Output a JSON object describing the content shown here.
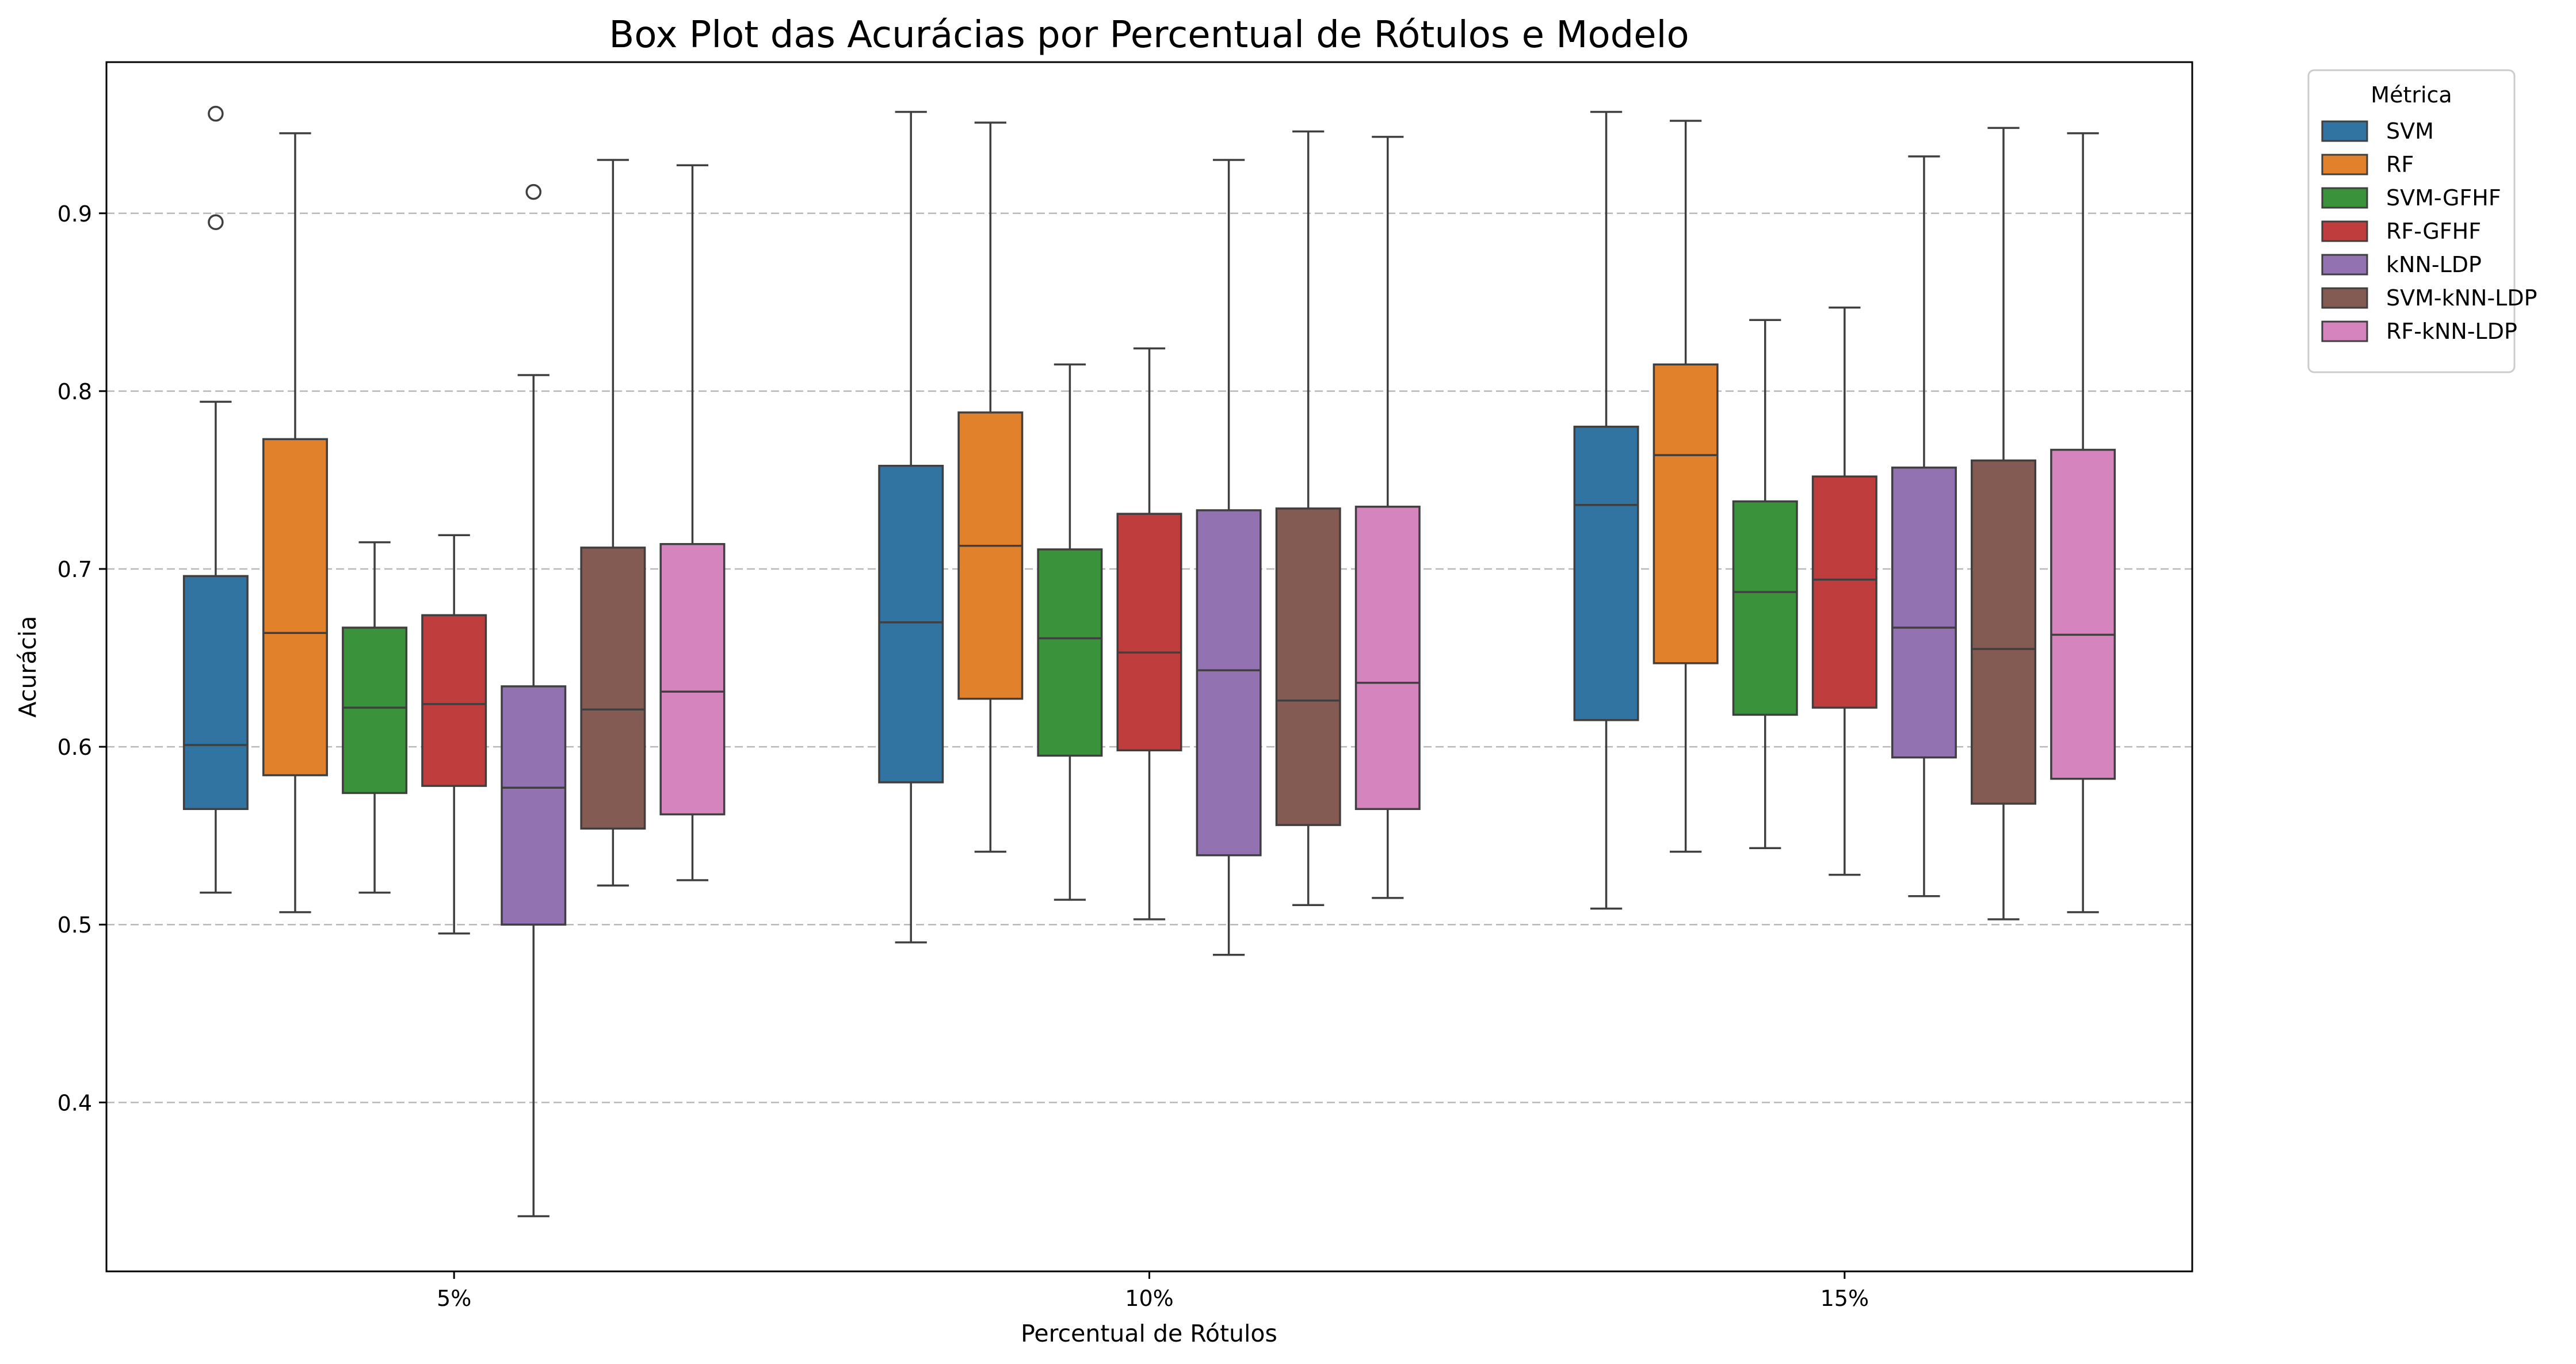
{
  "chart_data": {
    "type": "box",
    "title": "Box Plot das Acurácias por Percentual de Rótulos e Modelo",
    "xlabel": "Percentual de Rótulos",
    "ylabel": "Acurácia",
    "categories": [
      "5%",
      "10%",
      "15%"
    ],
    "ylim": [
      0.305,
      0.985
    ],
    "yticks": [
      0.4,
      0.5,
      0.6,
      0.7,
      0.8,
      0.9
    ],
    "ytick_labels": [
      "0.4",
      "0.5",
      "0.6",
      "0.7",
      "0.8",
      "0.9"
    ],
    "grid": "y, dashed",
    "legend": {
      "title": "Métrica",
      "placement": "outside top-right"
    },
    "series": [
      {
        "name": "SVM",
        "color": "#3274a1",
        "boxes": [
          {
            "whisker_low": 0.518,
            "q1": 0.565,
            "median": 0.601,
            "q3": 0.696,
            "whisker_high": 0.794,
            "outliers": [
              0.895,
              0.956
            ]
          },
          {
            "whisker_low": 0.49,
            "q1": 0.58,
            "median": 0.67,
            "q3": 0.758,
            "whisker_high": 0.957,
            "outliers": []
          },
          {
            "whisker_low": 0.509,
            "q1": 0.615,
            "median": 0.736,
            "q3": 0.78,
            "whisker_high": 0.957,
            "outliers": []
          }
        ]
      },
      {
        "name": "RF",
        "color": "#e1812c",
        "boxes": [
          {
            "whisker_low": 0.507,
            "q1": 0.584,
            "median": 0.664,
            "q3": 0.773,
            "whisker_high": 0.945,
            "outliers": []
          },
          {
            "whisker_low": 0.541,
            "q1": 0.627,
            "median": 0.713,
            "q3": 0.788,
            "whisker_high": 0.951,
            "outliers": []
          },
          {
            "whisker_low": 0.541,
            "q1": 0.647,
            "median": 0.764,
            "q3": 0.815,
            "whisker_high": 0.952,
            "outliers": []
          }
        ]
      },
      {
        "name": "SVM-GFHF",
        "color": "#3a923a",
        "boxes": [
          {
            "whisker_low": 0.518,
            "q1": 0.574,
            "median": 0.622,
            "q3": 0.667,
            "whisker_high": 0.715,
            "outliers": []
          },
          {
            "whisker_low": 0.514,
            "q1": 0.595,
            "median": 0.661,
            "q3": 0.711,
            "whisker_high": 0.815,
            "outliers": []
          },
          {
            "whisker_low": 0.543,
            "q1": 0.618,
            "median": 0.687,
            "q3": 0.738,
            "whisker_high": 0.84,
            "outliers": []
          }
        ]
      },
      {
        "name": "RF-GFHF",
        "color": "#c03d3e",
        "boxes": [
          {
            "whisker_low": 0.495,
            "q1": 0.578,
            "median": 0.624,
            "q3": 0.674,
            "whisker_high": 0.719,
            "outliers": []
          },
          {
            "whisker_low": 0.503,
            "q1": 0.598,
            "median": 0.653,
            "q3": 0.731,
            "whisker_high": 0.824,
            "outliers": []
          },
          {
            "whisker_low": 0.528,
            "q1": 0.622,
            "median": 0.694,
            "q3": 0.752,
            "whisker_high": 0.847,
            "outliers": []
          }
        ]
      },
      {
        "name": "kNN-LDP",
        "color": "#9372b2",
        "boxes": [
          {
            "whisker_low": 0.336,
            "q1": 0.5,
            "median": 0.577,
            "q3": 0.634,
            "whisker_high": 0.809,
            "outliers": [
              0.912
            ]
          },
          {
            "whisker_low": 0.483,
            "q1": 0.539,
            "median": 0.643,
            "q3": 0.733,
            "whisker_high": 0.93,
            "outliers": []
          },
          {
            "whisker_low": 0.516,
            "q1": 0.594,
            "median": 0.667,
            "q3": 0.757,
            "whisker_high": 0.932,
            "outliers": []
          }
        ]
      },
      {
        "name": "SVM-kNN-LDP",
        "color": "#845b53",
        "boxes": [
          {
            "whisker_low": 0.522,
            "q1": 0.554,
            "median": 0.621,
            "q3": 0.712,
            "whisker_high": 0.93,
            "outliers": []
          },
          {
            "whisker_low": 0.511,
            "q1": 0.556,
            "median": 0.626,
            "q3": 0.734,
            "whisker_high": 0.946,
            "outliers": []
          },
          {
            "whisker_low": 0.503,
            "q1": 0.568,
            "median": 0.655,
            "q3": 0.761,
            "whisker_high": 0.948,
            "outliers": []
          }
        ]
      },
      {
        "name": "RF-kNN-LDP",
        "color": "#d684bd",
        "boxes": [
          {
            "whisker_low": 0.525,
            "q1": 0.562,
            "median": 0.631,
            "q3": 0.714,
            "whisker_high": 0.927,
            "outliers": []
          },
          {
            "whisker_low": 0.515,
            "q1": 0.565,
            "median": 0.636,
            "q3": 0.735,
            "whisker_high": 0.943,
            "outliers": []
          },
          {
            "whisker_low": 0.507,
            "q1": 0.582,
            "median": 0.663,
            "q3": 0.767,
            "whisker_high": 0.945,
            "outliers": []
          }
        ]
      }
    ]
  }
}
